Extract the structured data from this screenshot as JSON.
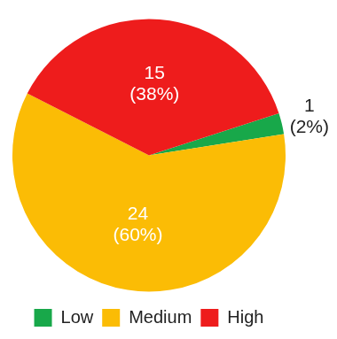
{
  "chart_data": {
    "type": "pie",
    "categories": [
      "Low",
      "Medium",
      "High"
    ],
    "values": [
      1,
      24,
      15
    ],
    "value_labels": [
      "1 (2%)",
      "24 (60%)",
      "15 (38%)"
    ],
    "colors": [
      "#18a84a",
      "#fbbc05",
      "#ee1c1c"
    ],
    "data_labels": true,
    "legend": "bottom"
  }
}
